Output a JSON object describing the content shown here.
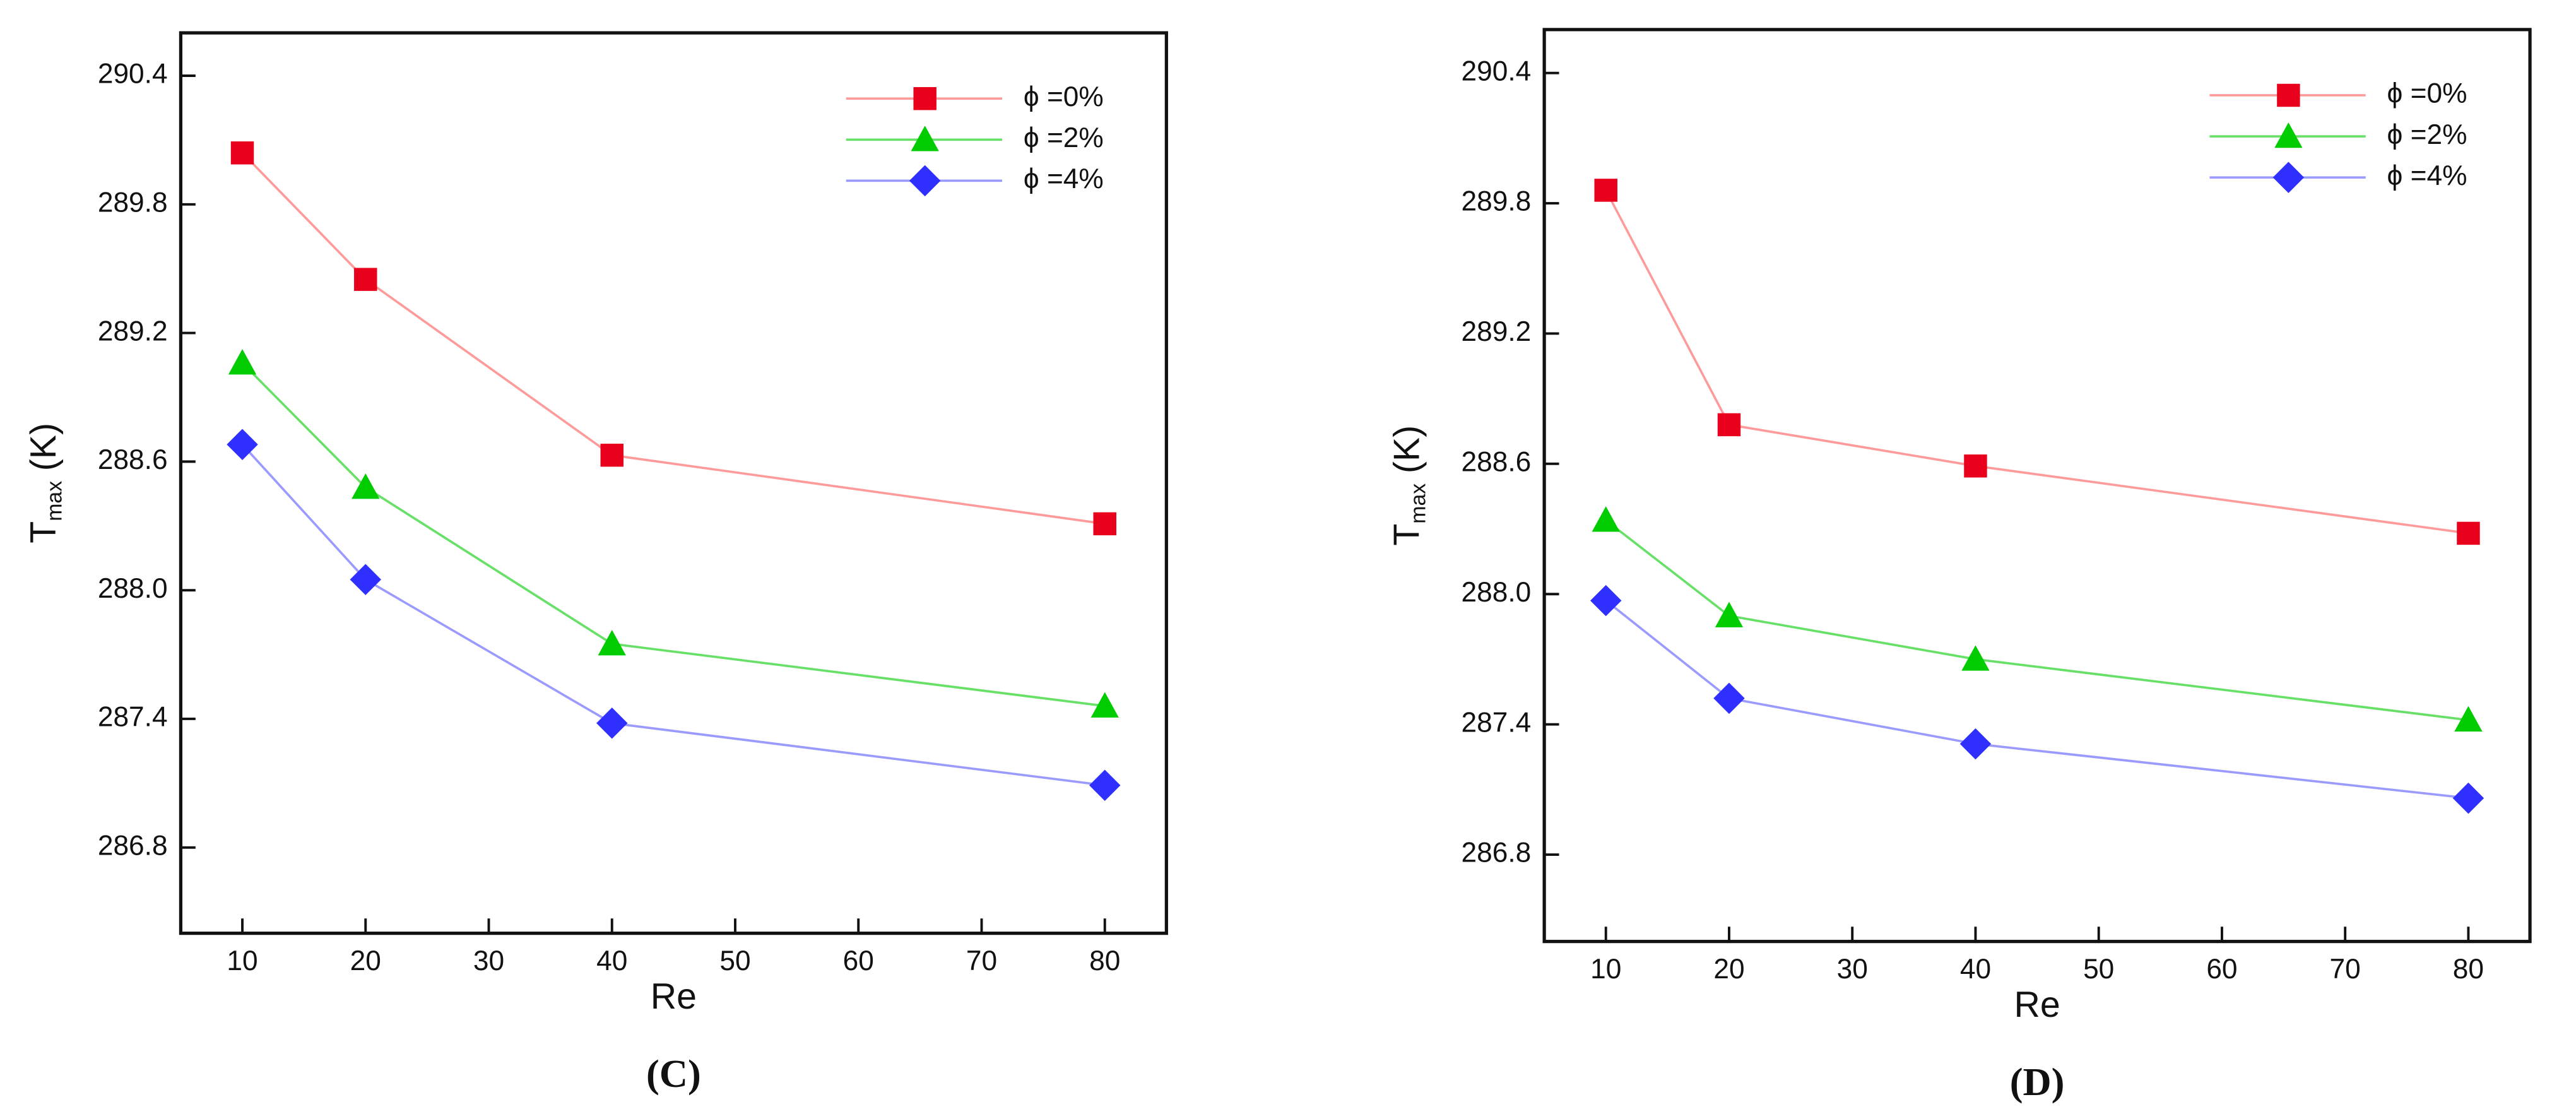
{
  "chart_data": [
    {
      "type": "line",
      "caption": "(C)",
      "xlabel": "Re",
      "ylabel": "T",
      "ylabel_sub": "max",
      "ylabel_unit": "(K)",
      "x": [
        10,
        20,
        40,
        80
      ],
      "xlim": [
        5,
        85
      ],
      "xticks": [
        10,
        20,
        30,
        40,
        50,
        60,
        70,
        80
      ],
      "ylim": [
        286.4,
        290.6
      ],
      "yticks": [
        286.8,
        287.4,
        {
          "value": 288,
          "label": "288.0"
        },
        288.6,
        289.2,
        289.8,
        290.4
      ],
      "legend": "upper right",
      "series": [
        {
          "name": "ϕ =0%",
          "color": "#e8001c",
          "line_color": "#ff9a9a",
          "marker": "square",
          "values": [
            290.04,
            289.45,
            288.63,
            288.31
          ]
        },
        {
          "name": "ϕ =2%",
          "color": "#00cc00",
          "line_color": "#66e066",
          "marker": "triangle",
          "values": [
            289.06,
            288.48,
            287.75,
            287.46
          ]
        },
        {
          "name": "ϕ =4%",
          "color": "#2f2fff",
          "line_color": "#9a9aff",
          "marker": "diamond",
          "values": [
            288.68,
            288.05,
            287.38,
            287.09
          ]
        }
      ]
    },
    {
      "type": "line",
      "caption": "(D)",
      "xlabel": "Re",
      "ylabel": "T",
      "ylabel_sub": "max",
      "ylabel_unit": "(K)",
      "x": [
        10,
        20,
        40,
        80
      ],
      "xlim": [
        5,
        85
      ],
      "xticks": [
        10,
        20,
        30,
        40,
        50,
        60,
        70,
        80
      ],
      "ylim": [
        286.4,
        290.6
      ],
      "yticks": [
        286.8,
        287.4,
        {
          "value": 288,
          "label": "288.0"
        },
        288.6,
        289.2,
        289.8,
        290.4
      ],
      "legend": "upper right",
      "series": [
        {
          "name": "ϕ =0%",
          "color": "#e8001c",
          "line_color": "#ff9a9a",
          "marker": "square",
          "values": [
            289.86,
            288.78,
            288.59,
            288.28
          ]
        },
        {
          "name": "ϕ =2%",
          "color": "#00cc00",
          "line_color": "#66e066",
          "marker": "triangle",
          "values": [
            288.34,
            287.9,
            287.7,
            287.42
          ]
        },
        {
          "name": "ϕ =4%",
          "color": "#2f2fff",
          "line_color": "#9a9aff",
          "marker": "diamond",
          "values": [
            287.97,
            287.52,
            287.31,
            287.06
          ]
        }
      ]
    }
  ]
}
